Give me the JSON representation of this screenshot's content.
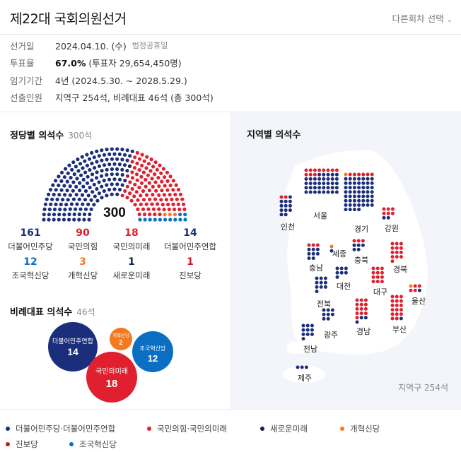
{
  "header": {
    "title": "제22대 국회의원선거",
    "round_select": "다른회차 선택",
    "round_select_icon": "chevron-down-icon"
  },
  "info": [
    {
      "label": "선거일",
      "value": "2024.04.10. (수)",
      "note": "법정공휴일"
    },
    {
      "label": "투표율",
      "value_bold": "67.0%",
      "value": " (투표자 29,654,450명)"
    },
    {
      "label": "임기기간",
      "value": "4년 (2024.5.30. ~ 2028.5.29.)"
    },
    {
      "label": "선출인원",
      "value": "지역구 254석, 비례대표 46석 (총 300석)"
    }
  ],
  "colors": {
    "democratic": "#1b2e7c",
    "ppp": "#e0202f",
    "rebuild": "#0a6fc2",
    "reform": "#f47a20",
    "newfuture": "#0f2152",
    "progressive": "#c31b2b"
  },
  "seats": {
    "title": "정당별 의석수",
    "total_label": "300석",
    "total": "300",
    "parties": [
      {
        "num": "161",
        "name": "더불어민주당",
        "color": "#1b2e7c"
      },
      {
        "num": "90",
        "name": "국민의힘",
        "color": "#e0202f"
      },
      {
        "num": "18",
        "name": "국민의미래",
        "color": "#e0202f"
      },
      {
        "num": "14",
        "name": "더불어민주연합",
        "color": "#1b2e7c"
      },
      {
        "num": "12",
        "name": "조국혁신당",
        "color": "#0a6fc2"
      },
      {
        "num": "3",
        "name": "개혁신당",
        "color": "#f47a20"
      },
      {
        "num": "1",
        "name": "새로운미래",
        "color": "#0f2152"
      },
      {
        "num": "1",
        "name": "진보당",
        "color": "#c31b2b"
      }
    ],
    "hemicycle_order": [
      {
        "party": "democratic",
        "count": 175
      },
      {
        "party": "newfuture",
        "count": 1
      },
      {
        "party": "progressive",
        "count": 1
      },
      {
        "party": "ppp",
        "count": 108
      },
      {
        "party": "reform",
        "count": 3
      },
      {
        "party": "rebuild",
        "count": 12
      }
    ]
  },
  "proportional": {
    "title": "비례대표 의석수",
    "total_label": "46석",
    "bubbles": [
      {
        "name": "더불어민주연합",
        "seats": "14",
        "color": "#1b2e7c"
      },
      {
        "name": "개혁신당",
        "seats": "2",
        "color": "#f47a20"
      },
      {
        "name": "조국혁신당",
        "seats": "12",
        "color": "#0a6fc2"
      },
      {
        "name": "국민의미래",
        "seats": "18",
        "color": "#e0202f"
      }
    ]
  },
  "regional": {
    "title": "지역별 의석수",
    "footer": "지역구 254석",
    "regions": [
      {
        "name": "서울",
        "dem": 37,
        "ppp": 11,
        "other": 0
      },
      {
        "name": "경기",
        "dem": 53,
        "ppp": 6,
        "other": 1
      },
      {
        "name": "인천",
        "dem": 12,
        "ppp": 2,
        "other": 0
      },
      {
        "name": "강원",
        "dem": 2,
        "ppp": 6,
        "other": 0
      },
      {
        "name": "충남",
        "dem": 8,
        "ppp": 3,
        "other": 0
      },
      {
        "name": "세종",
        "dem": 1,
        "ppp": 0,
        "other": 1
      },
      {
        "name": "충북",
        "dem": 5,
        "ppp": 3,
        "other": 0
      },
      {
        "name": "경북",
        "dem": 0,
        "ppp": 13,
        "other": 0
      },
      {
        "name": "대전",
        "dem": 7,
        "ppp": 0,
        "other": 0
      },
      {
        "name": "전북",
        "dem": 10,
        "ppp": 0,
        "other": 0
      },
      {
        "name": "대구",
        "dem": 0,
        "ppp": 12,
        "other": 0
      },
      {
        "name": "울산",
        "dem": 1,
        "ppp": 4,
        "other": 1
      },
      {
        "name": "광주",
        "dem": 8,
        "ppp": 0,
        "other": 0
      },
      {
        "name": "경남",
        "dem": 3,
        "ppp": 13,
        "other": 0
      },
      {
        "name": "부산",
        "dem": 1,
        "ppp": 17,
        "other": 0
      },
      {
        "name": "전남",
        "dem": 10,
        "ppp": 0,
        "other": 0
      },
      {
        "name": "제주",
        "dem": 3,
        "ppp": 0,
        "other": 0
      }
    ]
  },
  "legend": [
    {
      "label": "더불어민주당·더불어민주연합",
      "color": "#1b2e7c"
    },
    {
      "label": "국민의힘·국민의미래",
      "color": "#e0202f"
    },
    {
      "label": "새로운미래",
      "color": "#0f2152"
    },
    {
      "label": "개혁신당",
      "color": "#f47a20"
    },
    {
      "label": "진보당",
      "color": "#c31b2b"
    },
    {
      "label": "조국혁신당",
      "color": "#0a6fc2"
    }
  ]
}
